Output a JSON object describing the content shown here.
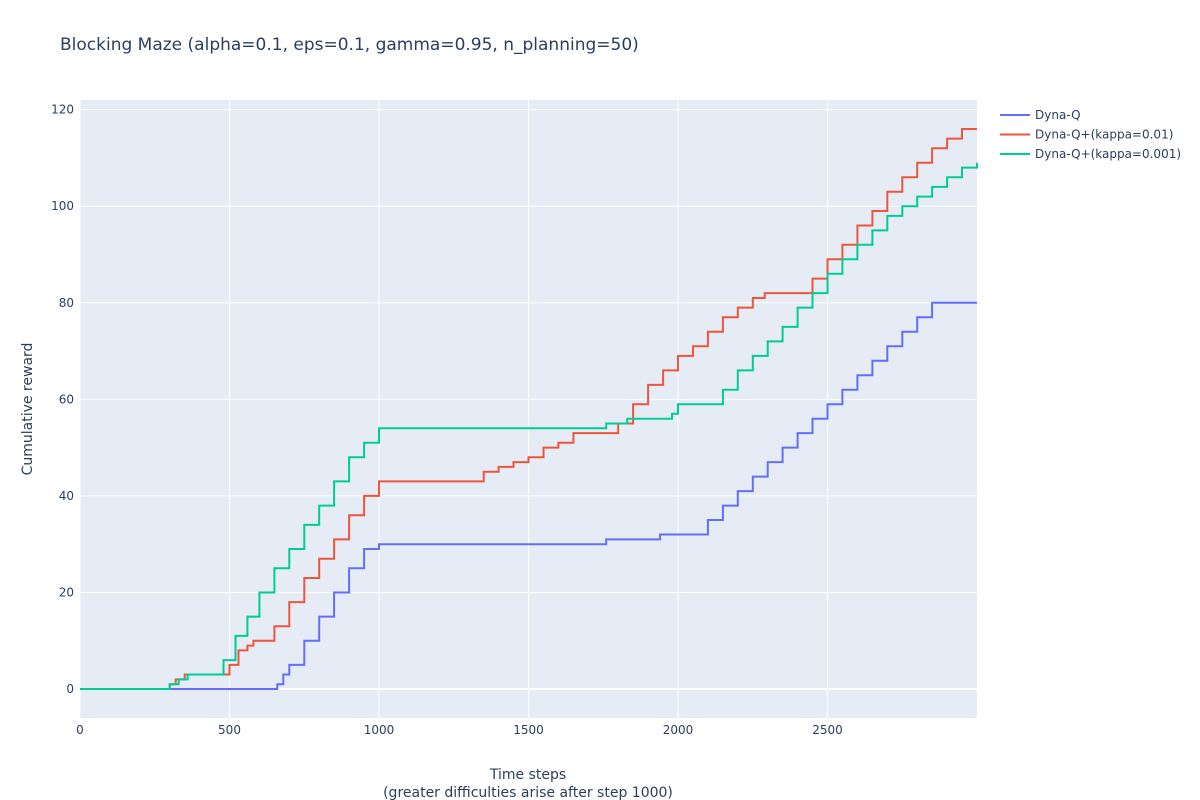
{
  "chart_data": {
    "type": "line",
    "title": "Blocking Maze (alpha=0.1, eps=0.1, gamma=0.95, n_planning=50)",
    "xlabel": "Time steps",
    "xlabel_sub": "(greater difficulties arise after step 1000)",
    "ylabel": "Cumulative reward",
    "xlim": [
      0,
      3000
    ],
    "ylim": [
      -6,
      122
    ],
    "x_ticks": [
      0,
      500,
      1000,
      1500,
      2000,
      2500
    ],
    "x_tick_labels": [
      "0",
      "500",
      "1000",
      "1500",
      "2000",
      "2500"
    ],
    "y_ticks": [
      0,
      20,
      40,
      60,
      80,
      100,
      120
    ],
    "y_tick_labels": [
      "0",
      "20",
      "40",
      "60",
      "80",
      "100",
      "120"
    ],
    "grid": true,
    "legend_position": "top-right",
    "line_shape": "step",
    "series": [
      {
        "name": "Dyna-Q",
        "color": "#636efa",
        "points": [
          [
            0,
            0
          ],
          [
            630,
            0
          ],
          [
            660,
            1
          ],
          [
            680,
            3
          ],
          [
            700,
            5
          ],
          [
            750,
            10
          ],
          [
            800,
            15
          ],
          [
            850,
            20
          ],
          [
            900,
            25
          ],
          [
            950,
            29
          ],
          [
            1000,
            30
          ],
          [
            1750,
            30
          ],
          [
            1760,
            31
          ],
          [
            1930,
            31
          ],
          [
            1940,
            32
          ],
          [
            2050,
            32
          ],
          [
            2100,
            35
          ],
          [
            2150,
            38
          ],
          [
            2200,
            41
          ],
          [
            2250,
            44
          ],
          [
            2300,
            47
          ],
          [
            2350,
            50
          ],
          [
            2400,
            53
          ],
          [
            2450,
            56
          ],
          [
            2500,
            59
          ],
          [
            2550,
            62
          ],
          [
            2600,
            65
          ],
          [
            2650,
            68
          ],
          [
            2700,
            71
          ],
          [
            2750,
            74
          ],
          [
            2800,
            77
          ],
          [
            2850,
            80
          ],
          [
            3000,
            80
          ]
        ]
      },
      {
        "name": "Dyna-Q+(kappa=0.01)",
        "color": "#ef553b",
        "points": [
          [
            0,
            0
          ],
          [
            290,
            0
          ],
          [
            300,
            1
          ],
          [
            320,
            2
          ],
          [
            350,
            3
          ],
          [
            470,
            3
          ],
          [
            500,
            5
          ],
          [
            530,
            8
          ],
          [
            560,
            9
          ],
          [
            580,
            10
          ],
          [
            620,
            10
          ],
          [
            650,
            13
          ],
          [
            700,
            18
          ],
          [
            750,
            23
          ],
          [
            800,
            27
          ],
          [
            850,
            31
          ],
          [
            900,
            36
          ],
          [
            950,
            40
          ],
          [
            1000,
            43
          ],
          [
            1330,
            43
          ],
          [
            1350,
            45
          ],
          [
            1400,
            46
          ],
          [
            1450,
            47
          ],
          [
            1500,
            48
          ],
          [
            1550,
            50
          ],
          [
            1600,
            51
          ],
          [
            1650,
            53
          ],
          [
            1780,
            53
          ],
          [
            1800,
            55
          ],
          [
            1850,
            59
          ],
          [
            1900,
            63
          ],
          [
            1950,
            66
          ],
          [
            2000,
            69
          ],
          [
            2050,
            71
          ],
          [
            2100,
            74
          ],
          [
            2150,
            77
          ],
          [
            2200,
            79
          ],
          [
            2250,
            81
          ],
          [
            2290,
            82
          ],
          [
            2390,
            82
          ],
          [
            2450,
            85
          ],
          [
            2500,
            89
          ],
          [
            2550,
            92
          ],
          [
            2600,
            96
          ],
          [
            2650,
            99
          ],
          [
            2700,
            103
          ],
          [
            2750,
            106
          ],
          [
            2800,
            109
          ],
          [
            2850,
            112
          ],
          [
            2900,
            114
          ],
          [
            2950,
            116
          ],
          [
            3000,
            116
          ]
        ]
      },
      {
        "name": "Dyna-Q+(kappa=0.001)",
        "color": "#00cc96",
        "points": [
          [
            0,
            0
          ],
          [
            290,
            0
          ],
          [
            300,
            1
          ],
          [
            330,
            2
          ],
          [
            360,
            3
          ],
          [
            450,
            3
          ],
          [
            480,
            6
          ],
          [
            520,
            11
          ],
          [
            560,
            15
          ],
          [
            600,
            20
          ],
          [
            650,
            25
          ],
          [
            700,
            29
          ],
          [
            750,
            34
          ],
          [
            800,
            38
          ],
          [
            850,
            43
          ],
          [
            900,
            48
          ],
          [
            950,
            51
          ],
          [
            1000,
            54
          ],
          [
            1740,
            54
          ],
          [
            1760,
            55
          ],
          [
            1800,
            55
          ],
          [
            1830,
            56
          ],
          [
            1960,
            56
          ],
          [
            1980,
            57
          ],
          [
            2000,
            59
          ],
          [
            2100,
            59
          ],
          [
            2150,
            62
          ],
          [
            2200,
            66
          ],
          [
            2250,
            69
          ],
          [
            2300,
            72
          ],
          [
            2350,
            75
          ],
          [
            2400,
            79
          ],
          [
            2450,
            82
          ],
          [
            2500,
            86
          ],
          [
            2550,
            89
          ],
          [
            2600,
            92
          ],
          [
            2650,
            95
          ],
          [
            2700,
            98
          ],
          [
            2750,
            100
          ],
          [
            2800,
            102
          ],
          [
            2850,
            104
          ],
          [
            2900,
            106
          ],
          [
            2950,
            108
          ],
          [
            3000,
            109
          ]
        ]
      }
    ]
  }
}
